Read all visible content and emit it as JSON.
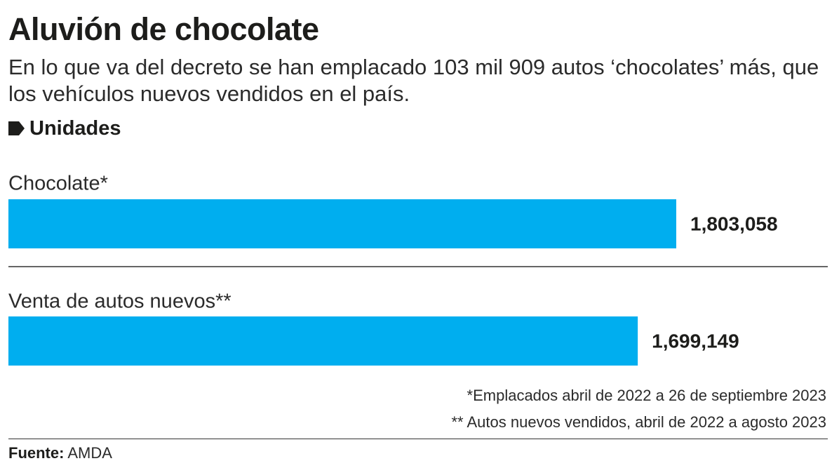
{
  "header": {
    "title": "Aluvión de chocolate",
    "subtitle": "En lo que va del decreto se han emplacado 103 mil 909 autos ‘chocolates’ más, que los vehículos nuevos vendidos en el país.",
    "units_label": "Unidades"
  },
  "chart_data": {
    "type": "bar",
    "orientation": "horizontal",
    "title": "Aluvión de chocolate",
    "units": "Unidades",
    "categories": [
      "Chocolate*",
      "Venta de autos nuevos**"
    ],
    "values": [
      1803058,
      1699149
    ],
    "value_labels": [
      "1,803,058",
      "1,699,149"
    ],
    "xlim": [
      0,
      1803058
    ],
    "grid": false,
    "legend": "none",
    "colors": {
      "bar": "#00AEEF",
      "text": "#1D1D1B",
      "rule": "#333333"
    }
  },
  "footnotes": [
    "*Emplacados abril de 2022 a 26 de septiembre 2023",
    "** Autos nuevos vendidos, abril de 2022 a agosto 2023"
  ],
  "source": {
    "label": "Fuente:",
    "value": "AMDA"
  }
}
